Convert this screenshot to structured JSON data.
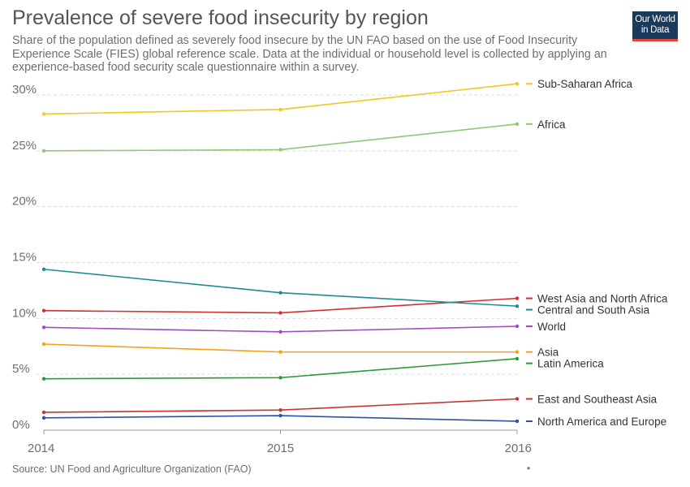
{
  "header": {
    "title": "Prevalence of severe food insecurity by region",
    "subtitle": "Share of the population defined as severely food insecure by the UN FAO based on the use of Food Insecurity Experience Scale (FIES) global reference scale. Data at the individual or household level is collected by applying an experience-based food security scale questionnaire within a survey.",
    "logo_line1": "Our World",
    "logo_line2": "in Data",
    "source": "Source: UN Food and Agriculture Organization (FAO)",
    "footer_mark": "•"
  },
  "colors": {
    "grid": "#dddddd",
    "axis": "#999999"
  },
  "chart_data": {
    "type": "line",
    "title": "Prevalence of severe food insecurity by region",
    "x": [
      2014,
      2015,
      2016
    ],
    "xticks": [
      "2014",
      "2015",
      "2016"
    ],
    "ylim": [
      0,
      30
    ],
    "yticks": [
      0,
      5,
      10,
      15,
      20,
      25,
      30
    ],
    "ytick_labels": [
      "0%",
      "5%",
      "10%",
      "15%",
      "20%",
      "25%",
      "30%"
    ],
    "grid": true,
    "series": [
      {
        "name": "Sub-Saharan Africa",
        "color": "#f2c61f",
        "values": [
          28.3,
          28.7,
          31.0
        ]
      },
      {
        "name": "Africa",
        "color": "#91c773",
        "values": [
          25.0,
          25.1,
          27.4
        ]
      },
      {
        "name": "West Asia and North Africa",
        "color": "#d3312d",
        "values": [
          10.7,
          10.5,
          11.8
        ]
      },
      {
        "name": "Central and South Asia",
        "color": "#1f8c8c",
        "values": [
          14.4,
          12.3,
          11.1
        ]
      },
      {
        "name": "World",
        "color": "#a04bc4",
        "values": [
          9.2,
          8.8,
          9.3
        ]
      },
      {
        "name": "Asia",
        "color": "#f5a01c",
        "values": [
          7.7,
          7.0,
          7.0
        ]
      },
      {
        "name": "Latin America",
        "color": "#2b9a36",
        "values": [
          4.6,
          4.7,
          6.4
        ]
      },
      {
        "name": "East and Southeast Asia",
        "color": "#c9322c",
        "values": [
          1.6,
          1.8,
          2.8
        ]
      },
      {
        "name": "North America and Europe",
        "color": "#2e52a8",
        "values": [
          1.1,
          1.3,
          0.8
        ]
      }
    ]
  }
}
